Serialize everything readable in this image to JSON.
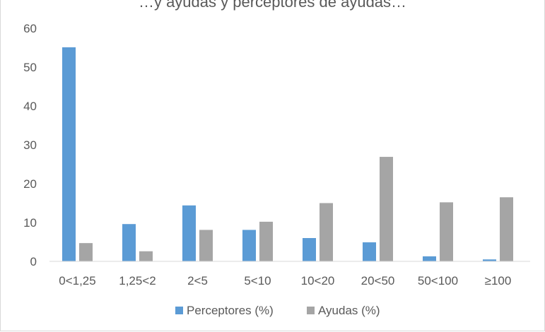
{
  "chart_data": {
    "type": "bar",
    "title": "…y ayudas y perceptores de ayudas…",
    "categories": [
      "0<1,25",
      "1,25<2",
      "2<5",
      "5<10",
      "10<20",
      "20<50",
      "50<100",
      "≥100"
    ],
    "series": [
      {
        "name": "Perceptores (%)",
        "color": "#5b9bd5",
        "values": [
          55.1,
          9.6,
          14.4,
          8.1,
          6.0,
          4.9,
          1.3,
          0.5
        ]
      },
      {
        "name": "Ayudas (%)",
        "color": "#a5a5a5",
        "values": [
          4.7,
          2.6,
          8.1,
          10.2,
          15.0,
          26.9,
          15.2,
          16.5
        ]
      }
    ],
    "yticks": [
      "0",
      "10",
      "20",
      "30",
      "40",
      "50",
      "60"
    ],
    "ylim": [
      0,
      60
    ],
    "grid": false,
    "legend": "bottom",
    "xlabel": "",
    "ylabel": ""
  }
}
